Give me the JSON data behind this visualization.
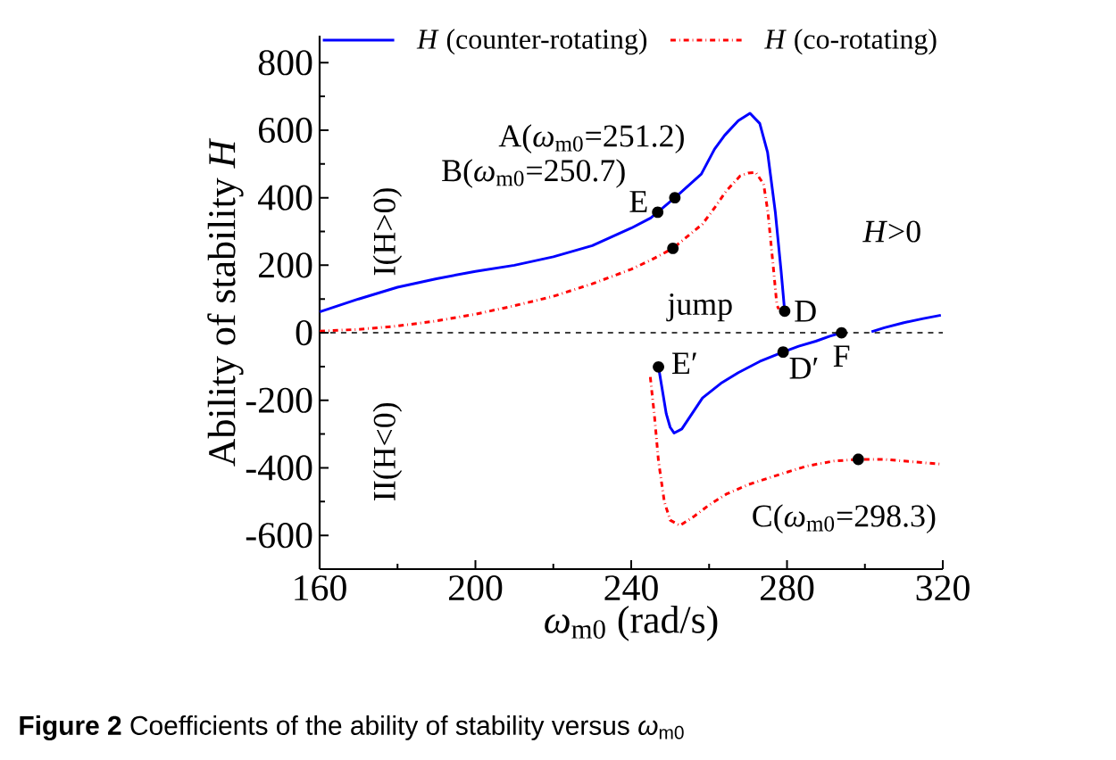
{
  "chart_data": {
    "type": "line",
    "xlabel": "*ω*$_{m0}$ (rad/s)",
    "ylabel": "Ability of stability *H*",
    "xlim": [
      160,
      320
    ],
    "xticks": [
      160,
      200,
      240,
      280,
      320
    ],
    "ylim": [
      -700,
      880
    ],
    "yticks": [
      -600,
      -400,
      -200,
      0,
      200,
      400,
      600,
      800
    ],
    "legend": "top",
    "marker": "none",
    "series": [
      {
        "name": "*H* (counter-rotating)",
        "color": "#0000ff",
        "line_style": "solid",
        "x": [
          160,
          170,
          180,
          190,
          200,
          210,
          220,
          230,
          240,
          245,
          246.8,
          251.2,
          258,
          261.4,
          264,
          267.5,
          270.5,
          273,
          275,
          277,
          278.5,
          279.4,
          null,
          247,
          248,
          249,
          250,
          251,
          253,
          258.3,
          263,
          267.5,
          273,
          279,
          283,
          287.4,
          291,
          294,
          null,
          301.7,
          305,
          310,
          315,
          319.5
        ],
        "values": [
          62,
          100,
          135,
          160,
          182,
          200,
          225,
          258,
          310,
          340,
          357,
          400,
          470,
          544,
          585,
          628,
          650,
          620,
          535,
          357,
          181,
          64,
          null,
          -101,
          -170,
          -240,
          -280,
          -297,
          -285,
          -193,
          -150,
          -118,
          -85,
          -57,
          -40,
          -25,
          -10,
          0,
          null,
          3,
          15,
          30,
          42,
          52
        ]
      },
      {
        "name": "*H* (co-rotating)",
        "color": "#ff0000",
        "line_style": "dashdot",
        "x": [
          160,
          170,
          180,
          190,
          200,
          210,
          220,
          230,
          240,
          245,
          250.7,
          258.3,
          261.4,
          264.4,
          268,
          270,
          272,
          274,
          275.1,
          276.6,
          277.4,
          277.9,
          null,
          244.9,
          246,
          247,
          248.5,
          250,
          252.5,
          256,
          260,
          264.4,
          270,
          276.6,
          285,
          292,
          298.3,
          305,
          312,
          319.5
        ],
        "values": [
          5,
          10,
          20,
          35,
          55,
          80,
          108,
          145,
          188,
          215,
          250,
          322,
          370,
          420,
          465,
          473,
          475,
          440,
          357,
          180,
          82,
          70,
          null,
          -131,
          -250,
          -380,
          -500,
          -555,
          -571,
          -545,
          -510,
          -478,
          -450,
          -425,
          -395,
          -380,
          -375,
          -375,
          -382,
          -389
        ]
      }
    ],
    "ref_lines": [
      {
        "axis": "y",
        "value": 0,
        "color": "#000000",
        "line_style": "dashed"
      }
    ],
    "annotations": [
      {
        "text": "A(*ω*$_{m0}$=251.2)",
        "x": 251.2,
        "y": 400
      },
      {
        "text": "B(*ω*$_{m0}$=250.7)",
        "x": 250.7,
        "y": 250
      },
      {
        "text": "C(*ω*$_{m0}$=298.3)",
        "x": 298.3,
        "y": -375
      },
      {
        "text": "E",
        "x": 246.8,
        "y": 357
      },
      {
        "text": "D",
        "x": 279.4,
        "y": 64
      },
      {
        "text": "E′",
        "x": 247,
        "y": -101
      },
      {
        "text": "D′",
        "x": 279,
        "y": -57
      },
      {
        "text": "F",
        "x": 294,
        "y": 0
      },
      "jump",
      "*H*>0",
      "I(H>0)",
      "II(H<0)",
      "**Figure 2** Coefficients of the ability of stability versus *ω*$_{m0}$"
    ]
  }
}
